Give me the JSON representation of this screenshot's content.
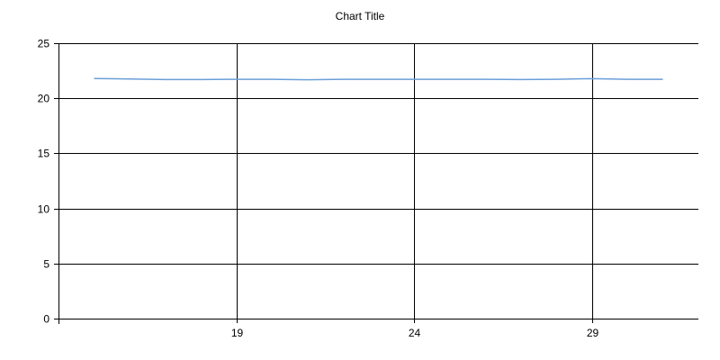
{
  "chart_data": {
    "type": "line",
    "title": "Chart Title",
    "xlabel": "",
    "ylabel": "",
    "xlim": [
      14,
      32
    ],
    "ylim": [
      0,
      25
    ],
    "x_ticks": [
      19,
      24,
      29
    ],
    "y_ticks": [
      0,
      5,
      10,
      15,
      20,
      25
    ],
    "grid": true,
    "legend": "none",
    "series": [
      {
        "color": "#6a9fd8",
        "x": [
          15,
          16,
          17,
          18,
          19,
          20,
          21,
          22,
          23,
          24,
          25,
          26,
          27,
          28,
          29,
          30,
          31
        ],
        "y": [
          21.8,
          21.75,
          21.7,
          21.7,
          21.72,
          21.72,
          21.68,
          21.72,
          21.72,
          21.72,
          21.72,
          21.72,
          21.7,
          21.72,
          21.78,
          21.72,
          21.72
        ]
      }
    ]
  }
}
